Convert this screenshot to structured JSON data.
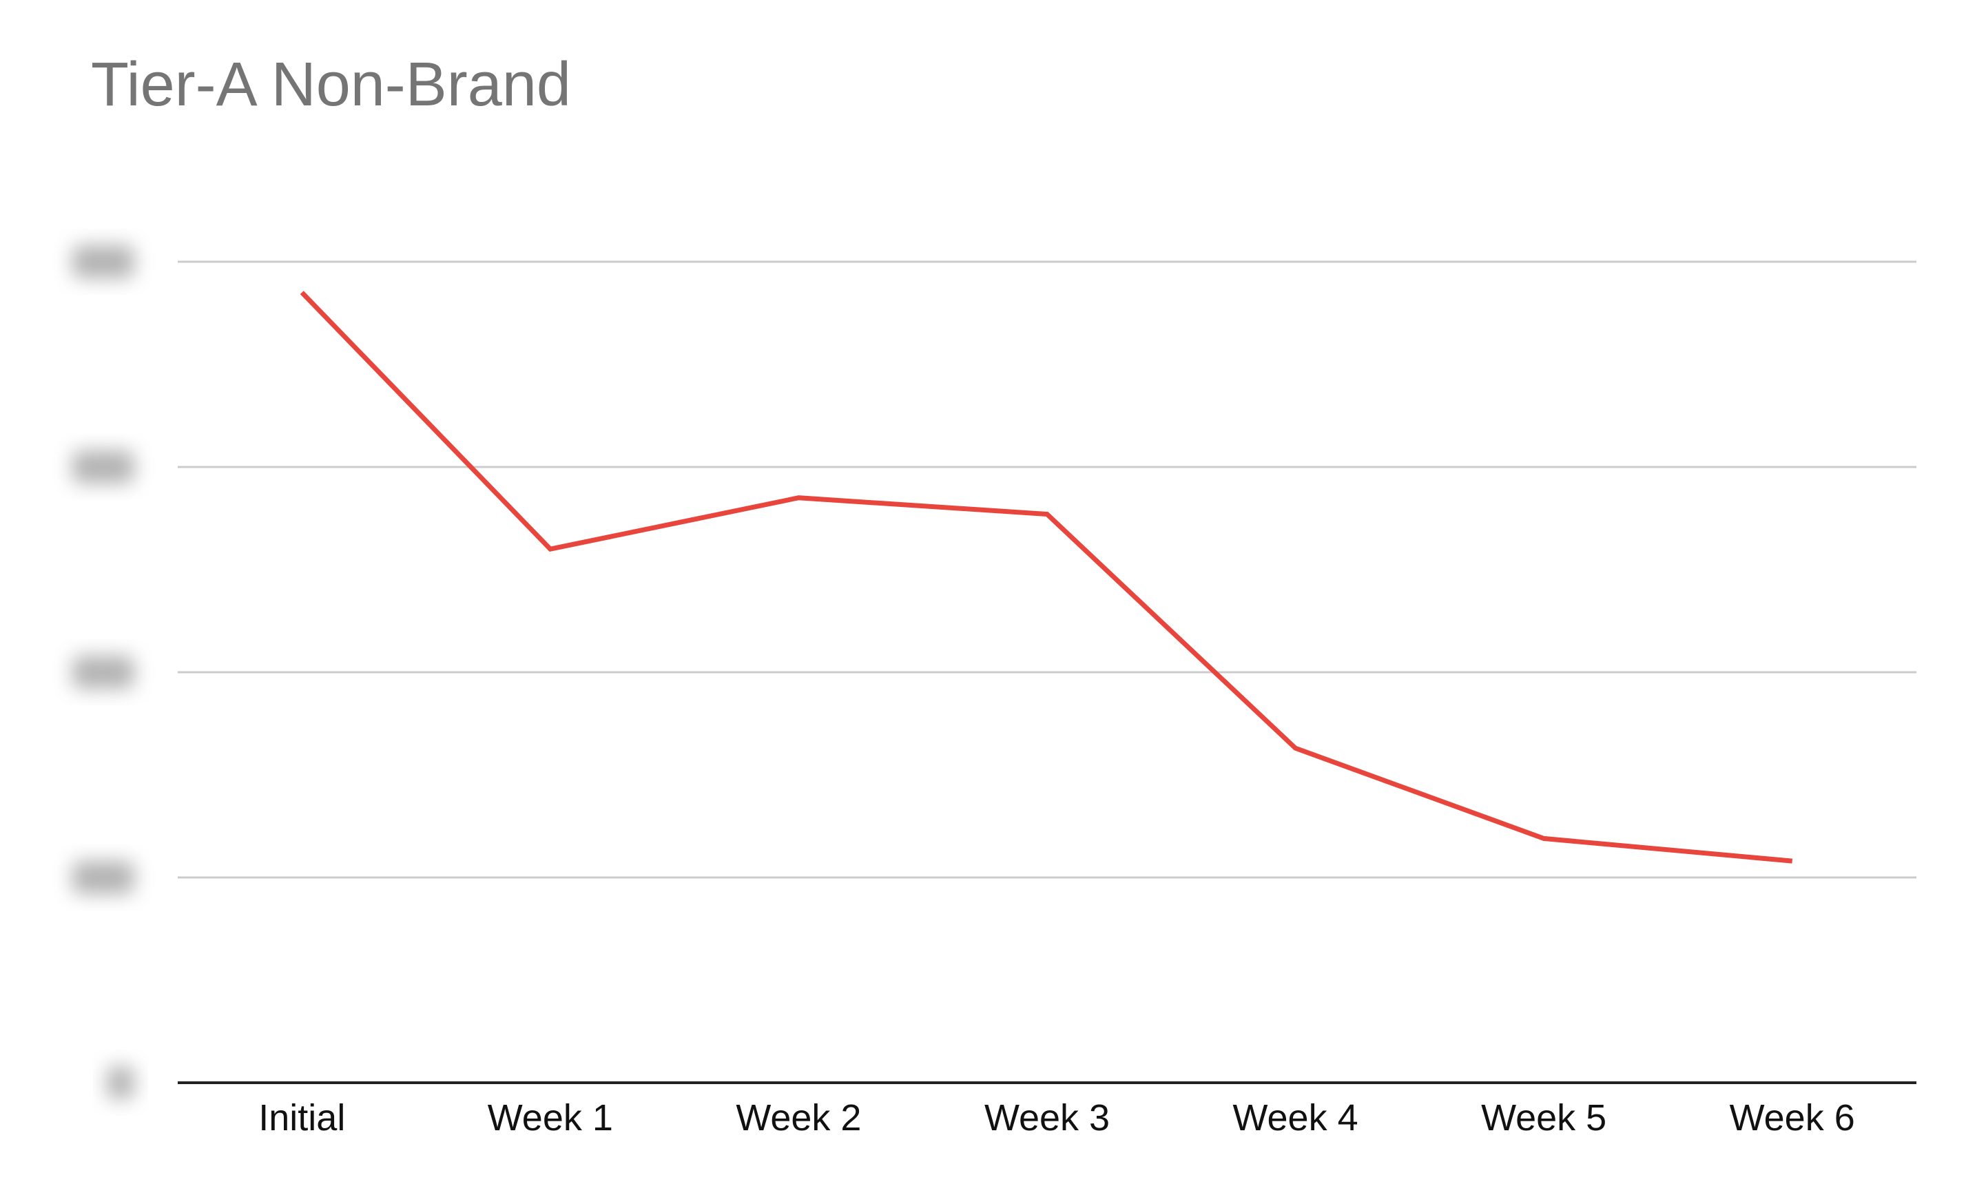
{
  "chart_data": {
    "type": "line",
    "title": "Tier-A Non-Brand",
    "xlabel": "",
    "ylabel": "",
    "categories": [
      "Initial",
      "Week 1",
      "Week 2",
      "Week 3",
      "Week 4",
      "Week 5",
      "Week 6"
    ],
    "series": [
      {
        "values": [
          3.85,
          2.6,
          2.85,
          2.77,
          1.63,
          1.19,
          1.08
        ],
        "color": "#e8453c"
      }
    ],
    "ylim": [
      0,
      4
    ],
    "yticks": [
      0,
      1,
      2,
      3,
      4
    ],
    "ytick_labels_obscured": true,
    "grid": true,
    "legend": "none"
  }
}
